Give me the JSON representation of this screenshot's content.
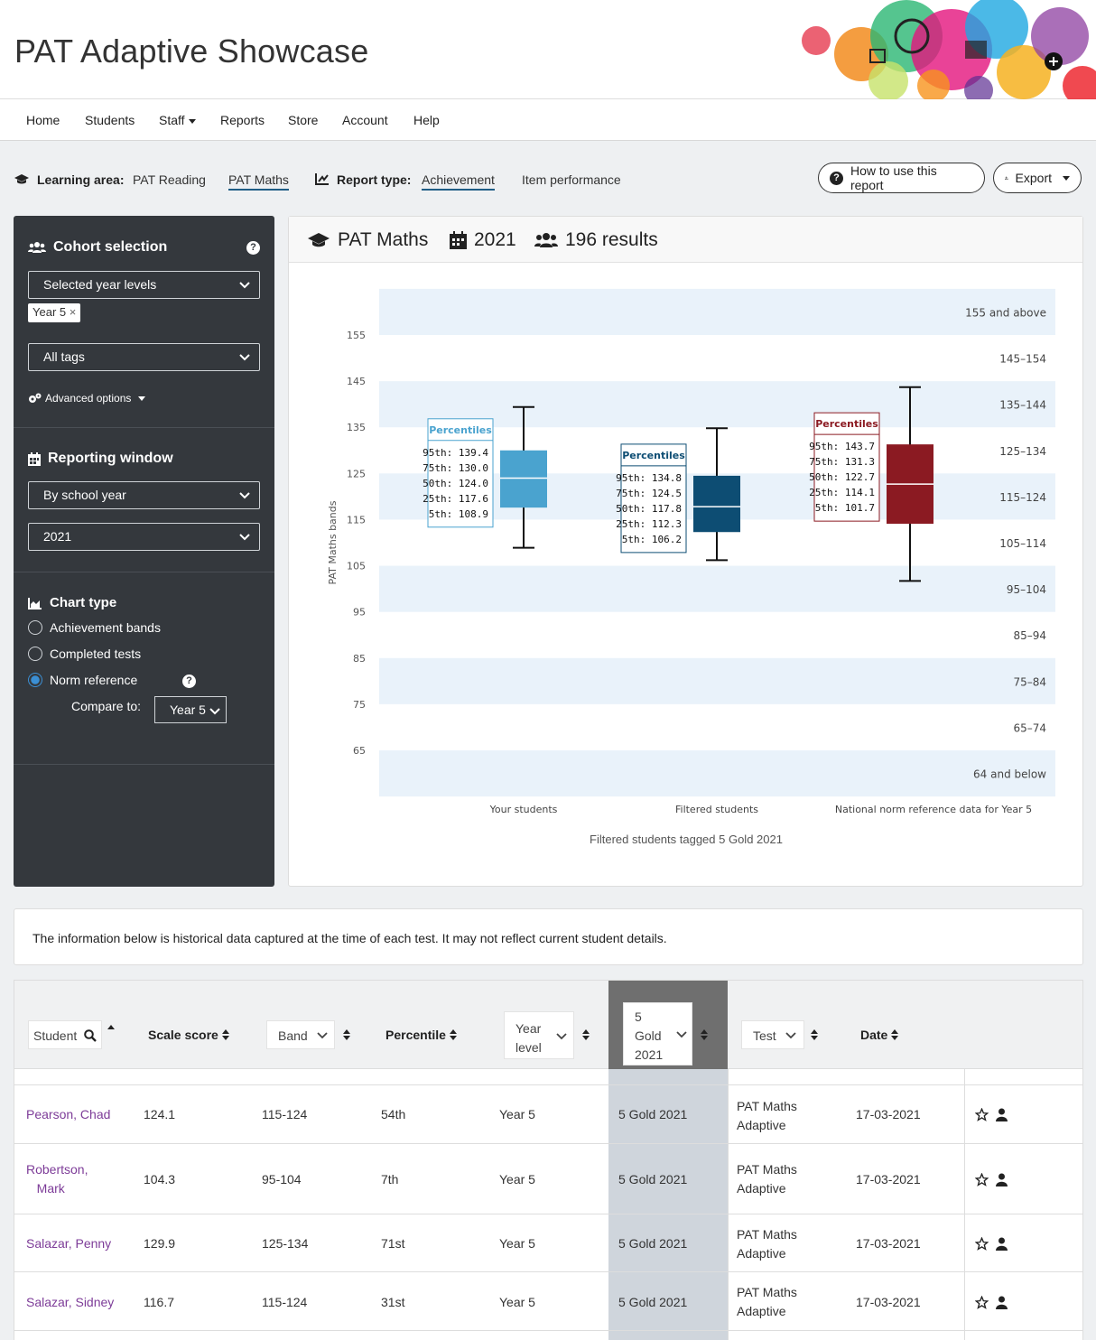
{
  "app": {
    "title": "PAT Adaptive Showcase"
  },
  "nav": [
    {
      "label": "Home"
    },
    {
      "label": "Students"
    },
    {
      "label": "Staff",
      "dropdown": true
    },
    {
      "label": "Reports"
    },
    {
      "label": "Store"
    },
    {
      "label": "Account"
    },
    {
      "label": "Help"
    }
  ],
  "filters": {
    "learning_area_label": "Learning area:",
    "learning_areas": [
      "PAT Reading",
      "PAT Maths"
    ],
    "learning_area_active": "PAT Maths",
    "report_type_label": "Report type:",
    "report_types": [
      "Achievement",
      "Item performance"
    ],
    "report_type_active": "Achievement",
    "how_to_label": "How to use this report",
    "export_label": "Export"
  },
  "sidebar": {
    "cohort_title": "Cohort selection",
    "year_select": "Selected year levels",
    "year_chip": "Year 5",
    "chip_remove": "×",
    "tags_select": "All tags",
    "advanced": "Advanced options",
    "reporting_title": "Reporting window",
    "window_select": "By school year",
    "year_value": "2021",
    "chart_type_title": "Chart type",
    "chart_types": [
      "Achievement bands",
      "Completed tests",
      "Norm reference"
    ],
    "chart_type_selected": "Norm reference",
    "compare_label": "Compare to:",
    "compare_value": "Year 5"
  },
  "chart_card": {
    "subject": "PAT Maths",
    "year": "2021",
    "results": "196 results"
  },
  "chart_data": {
    "type": "boxplot",
    "ylabel": "PAT Maths bands",
    "y_ticks": [
      65,
      75,
      85,
      95,
      105,
      115,
      125,
      135,
      145,
      155
    ],
    "ylim": [
      55,
      168
    ],
    "bands": [
      {
        "label": "155 and above",
        "lo": 155,
        "hi": 165,
        "shaded": true
      },
      {
        "label": "145–154",
        "lo": 145,
        "hi": 155,
        "shaded": false
      },
      {
        "label": "135–144",
        "lo": 135,
        "hi": 145,
        "shaded": true
      },
      {
        "label": "125–134",
        "lo": 125,
        "hi": 135,
        "shaded": false
      },
      {
        "label": "115–124",
        "lo": 115,
        "hi": 125,
        "shaded": true
      },
      {
        "label": "105–114",
        "lo": 105,
        "hi": 115,
        "shaded": false
      },
      {
        "label": "95–104",
        "lo": 95,
        "hi": 105,
        "shaded": true
      },
      {
        "label": "85–94",
        "lo": 85,
        "hi": 95,
        "shaded": false
      },
      {
        "label": "75–84",
        "lo": 75,
        "hi": 85,
        "shaded": true
      },
      {
        "label": "65–74",
        "lo": 65,
        "hi": 75,
        "shaded": false
      },
      {
        "label": "64 and below",
        "lo": 55,
        "hi": 65,
        "shaded": true
      }
    ],
    "series": [
      {
        "name": "Your students",
        "color": "#4aa3cf",
        "p95": 139.4,
        "p75": 130.0,
        "p50": 124.0,
        "p25": 117.6,
        "p5": 108.9
      },
      {
        "name": "Filtered students",
        "color": "#0d4d73",
        "p95": 134.8,
        "p75": 124.5,
        "p50": 117.8,
        "p25": 112.3,
        "p5": 106.2
      },
      {
        "name": "National norm reference data for Year 5",
        "color": "#8b1a22",
        "p95": 143.7,
        "p75": 131.3,
        "p50": 122.7,
        "p25": 114.1,
        "p5": 101.7
      }
    ],
    "percentiles_title": "Percentiles",
    "percentile_labels": [
      "95th:",
      "75th:",
      "50th:",
      "25th:",
      "5th:"
    ],
    "caption": "Filtered students tagged 5 Gold 2021"
  },
  "info": {
    "text": "The information below is historical data captured at the time of each test. It may not reflect current student details."
  },
  "table": {
    "headers": {
      "student": "Student",
      "scale": "Scale score",
      "band": "Band",
      "percentile": "Percentile",
      "year_level": [
        "Year",
        "level"
      ],
      "tag": [
        "5",
        "Gold",
        "2021"
      ],
      "test": "Test",
      "date": "Date"
    },
    "rows": [
      {
        "student": "Pearson, Chad",
        "scale": "124.1",
        "band": "115-124",
        "percentile": "54th",
        "year": "Year 5",
        "tag": "5 Gold 2021",
        "test": [
          "PAT Maths",
          "Adaptive"
        ],
        "date": "17-03-2021"
      },
      {
        "student": [
          "Robertson,",
          "Mark"
        ],
        "scale": "104.3",
        "band": "95-104",
        "percentile": "7th",
        "year": "Year 5",
        "tag": "5 Gold 2021",
        "test": [
          "PAT Maths",
          "Adaptive"
        ],
        "date": "17-03-2021"
      },
      {
        "student": "Salazar, Penny",
        "scale": "129.9",
        "band": "125-134",
        "percentile": "71st",
        "year": "Year 5",
        "tag": "5 Gold 2021",
        "test": [
          "PAT Maths",
          "Adaptive"
        ],
        "date": "17-03-2021"
      },
      {
        "student": "Salazar, Sidney",
        "scale": "116.7",
        "band": "115-124",
        "percentile": "31st",
        "year": "Year 5",
        "tag": "5 Gold 2021",
        "test": [
          "PAT Maths",
          "Adaptive"
        ],
        "date": "17-03-2021"
      }
    ]
  }
}
